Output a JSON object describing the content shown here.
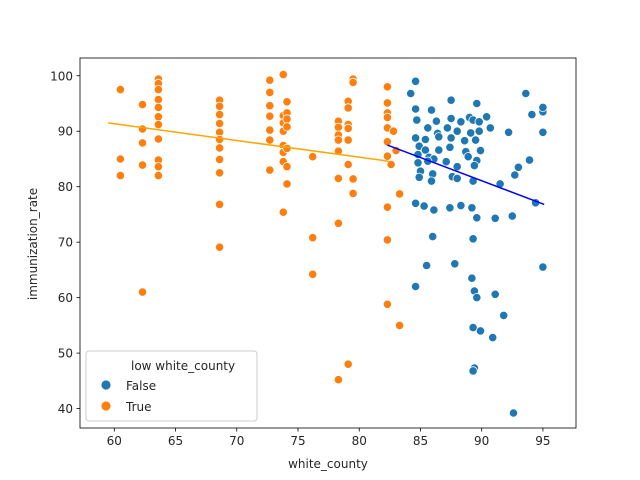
{
  "chart_data": {
    "type": "scatter",
    "xlabel": "white_county",
    "ylabel": "immunization_rate",
    "xlim": [
      57.2,
      97.7
    ],
    "ylim": [
      36.5,
      103.2
    ],
    "xticks": [
      60,
      65,
      70,
      75,
      80,
      85,
      90,
      95
    ],
    "yticks": [
      40,
      50,
      60,
      70,
      80,
      90,
      100
    ],
    "grid": false,
    "legend": {
      "title": "low white_county",
      "placement": "lower-left",
      "entries": [
        "False",
        "True"
      ]
    },
    "colors": {
      "False": "#1f77b4",
      "True": "#ff7f0e",
      "fit_False": "#0000ff",
      "fit_True": "#ffa500"
    },
    "series": [
      {
        "name": "False",
        "points": [
          [
            84.6,
            99
          ],
          [
            84.2,
            96.8
          ],
          [
            84.6,
            94
          ],
          [
            85.9,
            93.8
          ],
          [
            87.5,
            95.6
          ],
          [
            89.6,
            95
          ],
          [
            90.4,
            92.6
          ],
          [
            84.7,
            92
          ],
          [
            86.3,
            91.8
          ],
          [
            87.5,
            92.3
          ],
          [
            88.3,
            91.7
          ],
          [
            89.0,
            92.5
          ],
          [
            89.3,
            92.0
          ],
          [
            89.8,
            91.7
          ],
          [
            85.6,
            90.6
          ],
          [
            86.4,
            89.6
          ],
          [
            87.2,
            90.6
          ],
          [
            88.0,
            90.0
          ],
          [
            89.1,
            89.7
          ],
          [
            89.8,
            90.0
          ],
          [
            90.7,
            90.6
          ],
          [
            84.6,
            88.8
          ],
          [
            85.4,
            88.5
          ],
          [
            86.5,
            89.0
          ],
          [
            87.5,
            88.8
          ],
          [
            88.6,
            88.3
          ],
          [
            89.5,
            88.4
          ],
          [
            84.9,
            87.3
          ],
          [
            85.4,
            86.6
          ],
          [
            86.5,
            86.6
          ],
          [
            87.4,
            87.1
          ],
          [
            88.7,
            86.3
          ],
          [
            89.9,
            86.5
          ],
          [
            84.8,
            85.8
          ],
          [
            85.7,
            85.3
          ],
          [
            86.1,
            85.0
          ],
          [
            88.9,
            85.4
          ],
          [
            89.6,
            84.7
          ],
          [
            84.8,
            84.3
          ],
          [
            85.6,
            84.6
          ],
          [
            87.1,
            84.5
          ],
          [
            88.0,
            83.6
          ],
          [
            89.4,
            83.8
          ],
          [
            85.0,
            82.8
          ],
          [
            86.0,
            82.3
          ],
          [
            87.6,
            81.8
          ],
          [
            84.9,
            81.7
          ],
          [
            85.9,
            81.0
          ],
          [
            89.3,
            81.0
          ],
          [
            91.5,
            80.5
          ],
          [
            93.0,
            83.5
          ],
          [
            92.7,
            82.1
          ],
          [
            93.9,
            84.8
          ],
          [
            92.2,
            89.8
          ],
          [
            84.6,
            77.0
          ],
          [
            85.3,
            76.5
          ],
          [
            86.1,
            75.8
          ],
          [
            87.4,
            76.2
          ],
          [
            88.3,
            76.6
          ],
          [
            89.2,
            76.2
          ],
          [
            89.6,
            74.4
          ],
          [
            91.1,
            74.3
          ],
          [
            92.5,
            74.7
          ],
          [
            94.4,
            77.1
          ],
          [
            94.1,
            93.0
          ],
          [
            95.0,
            93.5
          ],
          [
            95.0,
            94.3
          ],
          [
            95.0,
            89.8
          ],
          [
            86.0,
            71.0
          ],
          [
            89.3,
            70.6
          ],
          [
            85.5,
            65.8
          ],
          [
            87.8,
            66.1
          ],
          [
            89.2,
            63.5
          ],
          [
            89.4,
            61.2
          ],
          [
            89.6,
            60.0
          ],
          [
            91.1,
            60.6
          ],
          [
            84.6,
            62.0
          ],
          [
            91.8,
            56.8
          ],
          [
            89.3,
            54.6
          ],
          [
            89.9,
            54.0
          ],
          [
            90.9,
            52.8
          ],
          [
            89.4,
            47.3
          ],
          [
            89.3,
            46.8
          ],
          [
            92.6,
            39.2
          ],
          [
            93.6,
            96.8
          ],
          [
            95.0,
            65.5
          ],
          [
            88.0,
            81.5
          ]
        ]
      },
      {
        "name": "True",
        "points": [
          [
            60.5,
            97.5
          ],
          [
            60.5,
            85.0
          ],
          [
            60.5,
            82.0
          ],
          [
            62.3,
            94.8
          ],
          [
            62.3,
            90.4
          ],
          [
            62.3,
            87.9
          ],
          [
            62.3,
            83.9
          ],
          [
            62.3,
            61.0
          ],
          [
            63.6,
            99.4
          ],
          [
            63.6,
            98.6
          ],
          [
            63.6,
            97.5
          ],
          [
            63.6,
            95.7
          ],
          [
            63.6,
            94.3
          ],
          [
            63.6,
            92.6
          ],
          [
            63.6,
            91.2
          ],
          [
            63.6,
            88.6
          ],
          [
            63.6,
            84.8
          ],
          [
            63.6,
            83.6
          ],
          [
            63.6,
            82.0
          ],
          [
            68.6,
            95.6
          ],
          [
            68.6,
            94.5
          ],
          [
            68.6,
            93.0
          ],
          [
            68.6,
            91.4
          ],
          [
            68.6,
            89.8
          ],
          [
            68.6,
            88.5
          ],
          [
            68.6,
            87.0
          ],
          [
            68.6,
            84.9
          ],
          [
            68.6,
            82.5
          ],
          [
            68.6,
            76.8
          ],
          [
            68.6,
            69.1
          ],
          [
            72.7,
            99.2
          ],
          [
            72.7,
            97.0
          ],
          [
            72.7,
            94.6
          ],
          [
            72.7,
            92.7
          ],
          [
            72.7,
            90.2
          ],
          [
            72.7,
            88.4
          ],
          [
            72.7,
            83.0
          ],
          [
            73.8,
            100.2
          ],
          [
            73.8,
            92.8
          ],
          [
            73.8,
            91.5
          ],
          [
            73.8,
            90.0
          ],
          [
            73.8,
            87.4
          ],
          [
            73.8,
            86.2
          ],
          [
            73.8,
            84.5
          ],
          [
            73.8,
            75.4
          ],
          [
            74.1,
            95.3
          ],
          [
            74.1,
            93.3
          ],
          [
            74.1,
            92.2
          ],
          [
            74.1,
            90.8
          ],
          [
            74.1,
            86.9
          ],
          [
            74.1,
            83.6
          ],
          [
            74.1,
            80.5
          ],
          [
            76.2,
            85.4
          ],
          [
            76.2,
            70.8
          ],
          [
            76.2,
            64.2
          ],
          [
            78.3,
            91.8
          ],
          [
            78.3,
            90.7
          ],
          [
            78.3,
            89.3
          ],
          [
            78.3,
            88.4
          ],
          [
            78.3,
            86.4
          ],
          [
            78.3,
            81.5
          ],
          [
            78.3,
            73.4
          ],
          [
            78.3,
            45.2
          ],
          [
            79.1,
            95.4
          ],
          [
            79.1,
            94.2
          ],
          [
            79.1,
            91.2
          ],
          [
            79.1,
            90.5
          ],
          [
            79.1,
            88.4
          ],
          [
            79.1,
            84.0
          ],
          [
            79.1,
            48.0
          ],
          [
            79.5,
            99.4
          ],
          [
            79.5,
            98.8
          ],
          [
            79.5,
            81.4
          ],
          [
            79.5,
            78.8
          ],
          [
            82.3,
            98.0
          ],
          [
            82.3,
            95.1
          ],
          [
            82.3,
            93.3
          ],
          [
            82.3,
            92.5
          ],
          [
            82.3,
            90.6
          ],
          [
            82.3,
            88.1
          ],
          [
            82.3,
            85.5
          ],
          [
            82.3,
            76.3
          ],
          [
            82.3,
            70.4
          ],
          [
            82.3,
            58.8
          ],
          [
            83.3,
            78.7
          ],
          [
            83.3,
            55.0
          ],
          [
            82.8,
            90.0
          ],
          [
            83.0,
            86.5
          ],
          [
            82.6,
            84.0
          ]
        ]
      }
    ],
    "fit_lines": [
      {
        "name": "False",
        "x": [
          82.3,
          95.1
        ],
        "y": [
          87.5,
          76.8
        ]
      },
      {
        "name": "True",
        "x": [
          59.5,
          82.4
        ],
        "y": [
          91.5,
          84.6
        ]
      }
    ]
  }
}
